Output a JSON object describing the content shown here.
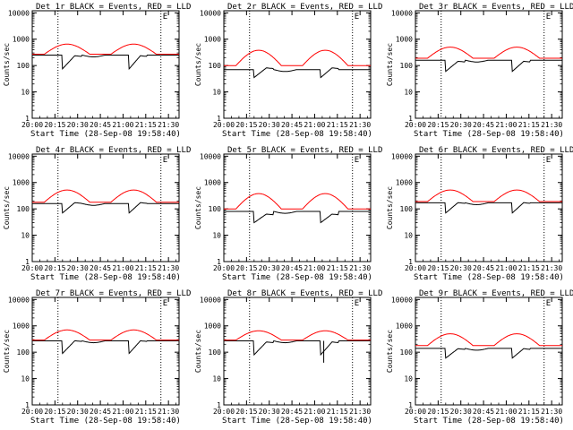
{
  "chart_data": {
    "common": {
      "xlabel": "Start Time (28-Sep-08 19:58:40)",
      "ylabel": "Counts/sec",
      "x_tick_labels": [
        "20:00",
        "20:15",
        "20:30",
        "20:45",
        "21:00",
        "21:15",
        "21:30"
      ],
      "x_tick_minutes": [
        0,
        15,
        30,
        45,
        60,
        75,
        90
      ],
      "xlim_minutes": [
        0,
        97
      ],
      "y_scale": "log",
      "ylim": [
        1,
        12000
      ],
      "y_tick_labels": [
        "1",
        "10",
        "100",
        "1000",
        "10000"
      ],
      "y_tick_values": [
        1,
        10,
        100,
        1000,
        10000
      ],
      "vline_minutes": [
        17,
        85
      ],
      "series_colors": {
        "Events": "#000000",
        "LLD": "#ff0000"
      }
    },
    "panels": [
      {
        "type": "line",
        "title": "Det 1r BLACK = Events, RED = LLD",
        "marker": "E",
        "events": {
          "base": 250,
          "peak": 260,
          "trough": 75,
          "spike": null
        },
        "lld": {
          "base": 270,
          "peak": 650
        }
      },
      {
        "type": "line",
        "title": "Det 2r BLACK = Events, RED = LLD",
        "marker": "E",
        "events": {
          "base": 70,
          "peak": 90,
          "trough": 35,
          "spike": null
        },
        "lld": {
          "base": 100,
          "peak": 380
        }
      },
      {
        "type": "line",
        "title": "Det 3r BLACK = Events, RED = LLD",
        "marker": "E",
        "events": {
          "base": 160,
          "peak": 160,
          "trough": 60,
          "spike": null
        },
        "lld": {
          "base": 190,
          "peak": 500
        }
      },
      {
        "type": "line",
        "title": "Det 4r BLACK = Events, RED = LLD",
        "marker": "E",
        "events": {
          "base": 160,
          "peak": 190,
          "trough": 70,
          "spike": null
        },
        "lld": {
          "base": 180,
          "peak": 520
        }
      },
      {
        "type": "line",
        "title": "Det 5r BLACK = Events, RED = LLD",
        "marker": "E",
        "events": {
          "base": 80,
          "peak": 70,
          "trough": 30,
          "spike": null
        },
        "lld": {
          "base": 100,
          "peak": 380
        }
      },
      {
        "type": "line",
        "title": "Det 6r BLACK = Events, RED = LLD",
        "marker": "E",
        "events": {
          "base": 170,
          "peak": 190,
          "trough": 70,
          "spike": null
        },
        "lld": {
          "base": 190,
          "peak": 520
        }
      },
      {
        "type": "line",
        "title": "Det 7r BLACK = Events, RED = LLD",
        "marker": "E",
        "events": {
          "base": 270,
          "peak": 300,
          "trough": 90,
          "spike": null
        },
        "lld": {
          "base": 290,
          "peak": 700
        }
      },
      {
        "type": "line",
        "title": "Det 8r BLACK = Events, RED = LLD",
        "marker": "E",
        "events": {
          "base": 270,
          "peak": 270,
          "trough": 80,
          "spike": 40
        },
        "lld": {
          "base": 290,
          "peak": 650
        }
      },
      {
        "type": "line",
        "title": "Det 9r BLACK = Events, RED = LLD",
        "marker": "E",
        "events": {
          "base": 140,
          "peak": 150,
          "trough": 60,
          "spike": null
        },
        "lld": {
          "base": 180,
          "peak": 500
        }
      }
    ]
  }
}
